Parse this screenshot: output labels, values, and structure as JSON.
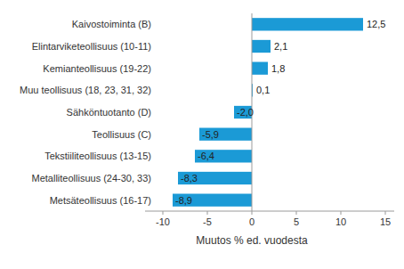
{
  "chart_data": {
    "type": "bar",
    "orientation": "horizontal",
    "categories": [
      "Kaivostoiminta (B)",
      "Elintarviketeollisuus (10-11)",
      "Kemianteollisuus (19-22)",
      "Muu teollisuus (18, 23, 31, 32)",
      "Sähköntuotanto (D)",
      "Teollisuus (C)",
      "Tekstiiliteollisuus (13-15)",
      "Metalliteollisuus (24-30, 33)",
      "Metsäteollisuus (16-17)"
    ],
    "values": [
      12.5,
      2.1,
      1.8,
      0.1,
      -2.0,
      -5.9,
      -6.4,
      -8.3,
      -8.9
    ],
    "value_labels": [
      "12,5",
      "2,1",
      "1,8",
      "0,1",
      "-2,0",
      "-5,9",
      "-6,4",
      "-8,3",
      "-8,9"
    ],
    "data_labels": true,
    "color": "#1b9ad6",
    "x_label": "Muutos % ed. vuodesta",
    "xlim": [
      -12,
      16
    ],
    "xticks": [
      -10,
      -5,
      0,
      5,
      10,
      15
    ],
    "grid": false
  }
}
